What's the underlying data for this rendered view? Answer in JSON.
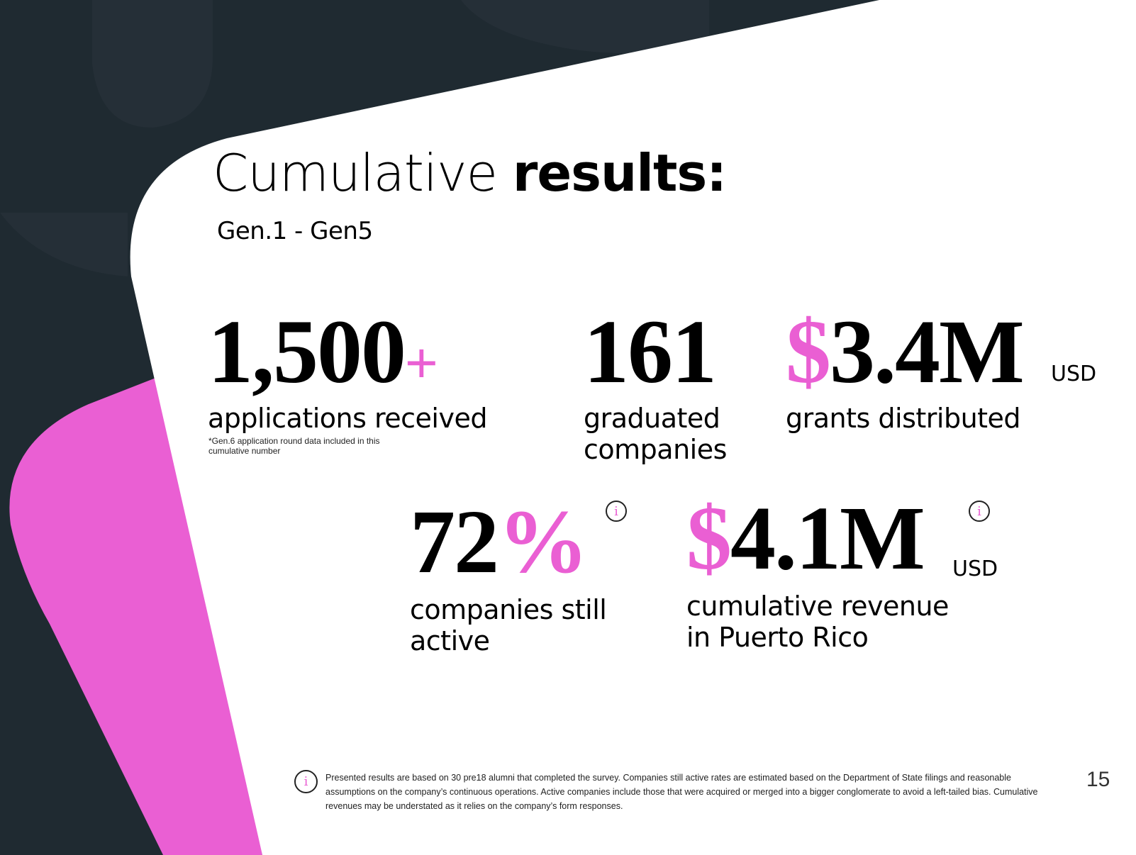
{
  "colors": {
    "dark_bg": "#1f2a31",
    "pink_accent": "#ea5fd3",
    "card": "#ffffff"
  },
  "title": {
    "light": "Cumulative ",
    "bold": "results:"
  },
  "subtitle": "Gen.1 - Gen5",
  "stats": {
    "applications": {
      "number": "1,500",
      "suffix": "+",
      "label": "applications received",
      "note_line1": "*Gen.6 application round data included in this",
      "note_line2": "cumulative number"
    },
    "graduated": {
      "number": "161",
      "label_line1": "graduated",
      "label_line2": "companies"
    },
    "grants": {
      "currency": "$",
      "number": "3.4M",
      "unit": "USD",
      "label": "grants  distributed"
    },
    "active": {
      "number": "72",
      "suffix": "%",
      "label_line1": "companies still",
      "label_line2": "active",
      "icon": "info-icon"
    },
    "revenue": {
      "currency": "$",
      "number": "4.1M",
      "unit": "USD",
      "label_line1": "cumulative revenue",
      "label_line2": "in Puerto Rico",
      "icon": "info-icon"
    }
  },
  "footer": {
    "icon": "info-icon",
    "icon_glyph": "i",
    "text": "Presented results are based on 30 pre18 alumni that completed the survey.  Companies still active rates are estimated based on the Department of State filings and reasonable assumptions on the company’s continuous operations. Active companies include those that were acquired or merged into a bigger conglomerate to avoid a left-tailed bias.  Cumulative revenues may be understated as it relies on the company’s form responses."
  },
  "page_number": "15"
}
